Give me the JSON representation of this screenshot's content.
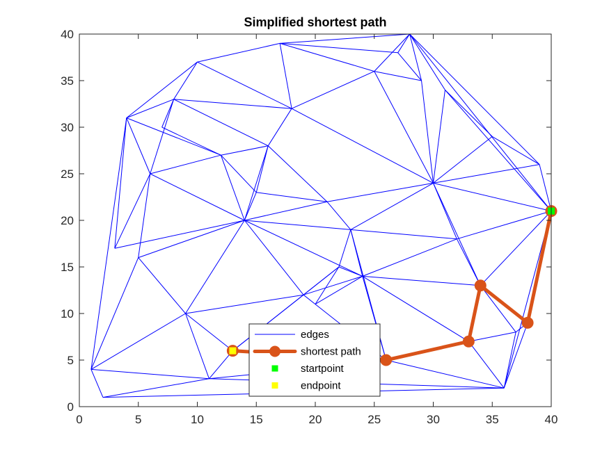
{
  "chart_data": {
    "type": "line",
    "title": "Simplified shortest path",
    "xlabel": "",
    "ylabel": "",
    "xlim": [
      0,
      40
    ],
    "ylim": [
      0,
      40
    ],
    "xticks": [
      0,
      5,
      10,
      15,
      20,
      25,
      30,
      35,
      40
    ],
    "yticks": [
      0,
      5,
      10,
      15,
      20,
      25,
      30,
      35,
      40
    ],
    "grid": false,
    "legend_position": "bottom-center",
    "legend": [
      {
        "label": "edges",
        "style": "line",
        "color": "#0000ff"
      },
      {
        "label": "shortest path",
        "style": "thick-line-marker",
        "color": "#d95319"
      },
      {
        "label": "startpoint",
        "style": "square",
        "color": "#00ff00"
      },
      {
        "label": "endpoint",
        "style": "square",
        "color": "#ffff00"
      }
    ],
    "series": [
      {
        "name": "edges",
        "color": "#0000ff",
        "segments": [
          [
            [
              1,
              4
            ],
            [
              4,
              31
            ]
          ],
          [
            [
              1,
              4
            ],
            [
              2,
              1
            ]
          ],
          [
            [
              1,
              4
            ],
            [
              11,
              3
            ]
          ],
          [
            [
              1,
              4
            ],
            [
              5,
              16
            ]
          ],
          [
            [
              1,
              4
            ],
            [
              9,
              10
            ]
          ],
          [
            [
              2,
              1
            ],
            [
              11,
              3
            ]
          ],
          [
            [
              2,
              1
            ],
            [
              36,
              2
            ]
          ],
          [
            [
              3,
              17
            ],
            [
              6,
              25
            ]
          ],
          [
            [
              3,
              17
            ],
            [
              4,
              31
            ]
          ],
          [
            [
              3,
              17
            ],
            [
              14,
              20
            ]
          ],
          [
            [
              4,
              31
            ],
            [
              10,
              37
            ]
          ],
          [
            [
              4,
              31
            ],
            [
              6,
              25
            ]
          ],
          [
            [
              4,
              31
            ],
            [
              12,
              27
            ]
          ],
          [
            [
              4,
              31
            ],
            [
              8,
              33
            ]
          ],
          [
            [
              5,
              16
            ],
            [
              6,
              25
            ]
          ],
          [
            [
              5,
              16
            ],
            [
              14,
              20
            ]
          ],
          [
            [
              5,
              16
            ],
            [
              9,
              10
            ]
          ],
          [
            [
              6,
              25
            ],
            [
              8,
              33
            ]
          ],
          [
            [
              6,
              25
            ],
            [
              12,
              27
            ]
          ],
          [
            [
              6,
              25
            ],
            [
              14,
              20
            ]
          ],
          [
            [
              7,
              30
            ],
            [
              8,
              33
            ]
          ],
          [
            [
              7,
              30
            ],
            [
              12,
              27
            ]
          ],
          [
            [
              8,
              33
            ],
            [
              10,
              37
            ]
          ],
          [
            [
              8,
              33
            ],
            [
              16,
              28
            ]
          ],
          [
            [
              8,
              33
            ],
            [
              18,
              32
            ]
          ],
          [
            [
              9,
              10
            ],
            [
              11,
              3
            ]
          ],
          [
            [
              9,
              10
            ],
            [
              14,
              20
            ]
          ],
          [
            [
              9,
              10
            ],
            [
              13,
              6
            ]
          ],
          [
            [
              9,
              10
            ],
            [
              19,
              12
            ]
          ],
          [
            [
              10,
              37
            ],
            [
              17,
              39
            ]
          ],
          [
            [
              10,
              37
            ],
            [
              18,
              32
            ]
          ],
          [
            [
              11,
              3
            ],
            [
              13,
              6
            ]
          ],
          [
            [
              11,
              3
            ],
            [
              19,
              4
            ]
          ],
          [
            [
              11,
              3
            ],
            [
              36,
              2
            ]
          ],
          [
            [
              12,
              27
            ],
            [
              16,
              28
            ]
          ],
          [
            [
              12,
              27
            ],
            [
              14,
              20
            ]
          ],
          [
            [
              12,
              27
            ],
            [
              15,
              23
            ]
          ],
          [
            [
              13,
              6
            ],
            [
              19,
              12
            ]
          ],
          [
            [
              13,
              6
            ],
            [
              22,
              15
            ]
          ],
          [
            [
              14,
              20
            ],
            [
              16,
              28
            ]
          ],
          [
            [
              14,
              20
            ],
            [
              15,
              23
            ]
          ],
          [
            [
              14,
              20
            ],
            [
              21,
              22
            ]
          ],
          [
            [
              14,
              20
            ],
            [
              23,
              19
            ]
          ],
          [
            [
              14,
              20
            ],
            [
              19,
              12
            ]
          ],
          [
            [
              14,
              20
            ],
            [
              24,
              14
            ]
          ],
          [
            [
              15,
              23
            ],
            [
              16,
              28
            ]
          ],
          [
            [
              15,
              23
            ],
            [
              21,
              22
            ]
          ],
          [
            [
              16,
              28
            ],
            [
              18,
              32
            ]
          ],
          [
            [
              16,
              28
            ],
            [
              21,
              22
            ]
          ],
          [
            [
              17,
              39
            ],
            [
              18,
              32
            ]
          ],
          [
            [
              17,
              39
            ],
            [
              25,
              36
            ]
          ],
          [
            [
              17,
              39
            ],
            [
              27,
              38
            ]
          ],
          [
            [
              17,
              39
            ],
            [
              28,
              40
            ]
          ],
          [
            [
              18,
              32
            ],
            [
              25,
              36
            ]
          ],
          [
            [
              18,
              32
            ],
            [
              30,
              24
            ]
          ],
          [
            [
              19,
              12
            ],
            [
              20,
              11
            ]
          ],
          [
            [
              19,
              12
            ],
            [
              22,
              15
            ]
          ],
          [
            [
              19,
              12
            ],
            [
              24,
              14
            ]
          ],
          [
            [
              20,
              11
            ],
            [
              22,
              15
            ]
          ],
          [
            [
              20,
              11
            ],
            [
              24,
              14
            ]
          ],
          [
            [
              20,
              11
            ],
            [
              26,
              5
            ]
          ],
          [
            [
              21,
              22
            ],
            [
              23,
              19
            ]
          ],
          [
            [
              21,
              22
            ],
            [
              30,
              24
            ]
          ],
          [
            [
              22,
              15
            ],
            [
              23,
              19
            ]
          ],
          [
            [
              22,
              15
            ],
            [
              24,
              14
            ]
          ],
          [
            [
              23,
              19
            ],
            [
              24,
              14
            ]
          ],
          [
            [
              23,
              19
            ],
            [
              26,
              5
            ]
          ],
          [
            [
              23,
              19
            ],
            [
              30,
              24
            ]
          ],
          [
            [
              23,
              19
            ],
            [
              32,
              18
            ]
          ],
          [
            [
              24,
              14
            ],
            [
              26,
              5
            ]
          ],
          [
            [
              24,
              14
            ],
            [
              32,
              18
            ]
          ],
          [
            [
              24,
              14
            ],
            [
              34,
              13
            ]
          ],
          [
            [
              24,
              14
            ],
            [
              33,
              7
            ]
          ],
          [
            [
              25,
              36
            ],
            [
              28,
              40
            ]
          ],
          [
            [
              25,
              36
            ],
            [
              29,
              35
            ]
          ],
          [
            [
              25,
              36
            ],
            [
              30,
              24
            ]
          ],
          [
            [
              26,
              5
            ],
            [
              36,
              2
            ]
          ],
          [
            [
              26,
              5
            ],
            [
              33,
              7
            ]
          ],
          [
            [
              27,
              38
            ],
            [
              28,
              40
            ]
          ],
          [
            [
              27,
              38
            ],
            [
              29,
              35
            ]
          ],
          [
            [
              28,
              40
            ],
            [
              29,
              35
            ]
          ],
          [
            [
              28,
              40
            ],
            [
              31,
              34
            ]
          ],
          [
            [
              28,
              40
            ],
            [
              39,
              26
            ]
          ],
          [
            [
              28,
              40
            ],
            [
              40,
              21
            ]
          ],
          [
            [
              29,
              35
            ],
            [
              30,
              24
            ]
          ],
          [
            [
              30,
              24
            ],
            [
              31,
              34
            ]
          ],
          [
            [
              30,
              24
            ],
            [
              35,
              29
            ]
          ],
          [
            [
              30,
              24
            ],
            [
              39,
              26
            ]
          ],
          [
            [
              30,
              24
            ],
            [
              40,
              21
            ]
          ],
          [
            [
              30,
              24
            ],
            [
              32,
              18
            ]
          ],
          [
            [
              30,
              24
            ],
            [
              34,
              13
            ]
          ],
          [
            [
              31,
              34
            ],
            [
              35,
              29
            ]
          ],
          [
            [
              31,
              34
            ],
            [
              40,
              21
            ]
          ],
          [
            [
              32,
              18
            ],
            [
              40,
              21
            ]
          ],
          [
            [
              32,
              18
            ],
            [
              34,
              13
            ]
          ],
          [
            [
              33,
              7
            ],
            [
              36,
              2
            ]
          ],
          [
            [
              33,
              7
            ],
            [
              37,
              8
            ]
          ],
          [
            [
              34,
              13
            ],
            [
              37,
              8
            ]
          ],
          [
            [
              34,
              13
            ],
            [
              40,
              21
            ]
          ],
          [
            [
              35,
              29
            ],
            [
              39,
              26
            ]
          ],
          [
            [
              36,
              2
            ],
            [
              37,
              8
            ]
          ],
          [
            [
              36,
              2
            ],
            [
              38,
              9
            ]
          ],
          [
            [
              36,
              2
            ],
            [
              40,
              21
            ]
          ],
          [
            [
              37,
              8
            ],
            [
              38,
              9
            ]
          ],
          [
            [
              38,
              9
            ],
            [
              40,
              21
            ]
          ],
          [
            [
              39,
              26
            ],
            [
              40,
              21
            ]
          ]
        ]
      },
      {
        "name": "shortest path",
        "color": "#d95319",
        "x": [
          40,
          38,
          34,
          33,
          26,
          13
        ],
        "y": [
          21,
          9,
          13,
          7,
          5,
          6
        ]
      },
      {
        "name": "startpoint",
        "color": "#00ff00",
        "x": [
          40
        ],
        "y": [
          21
        ]
      },
      {
        "name": "endpoint",
        "color": "#ffff00",
        "x": [
          13
        ],
        "y": [
          6
        ]
      }
    ]
  }
}
